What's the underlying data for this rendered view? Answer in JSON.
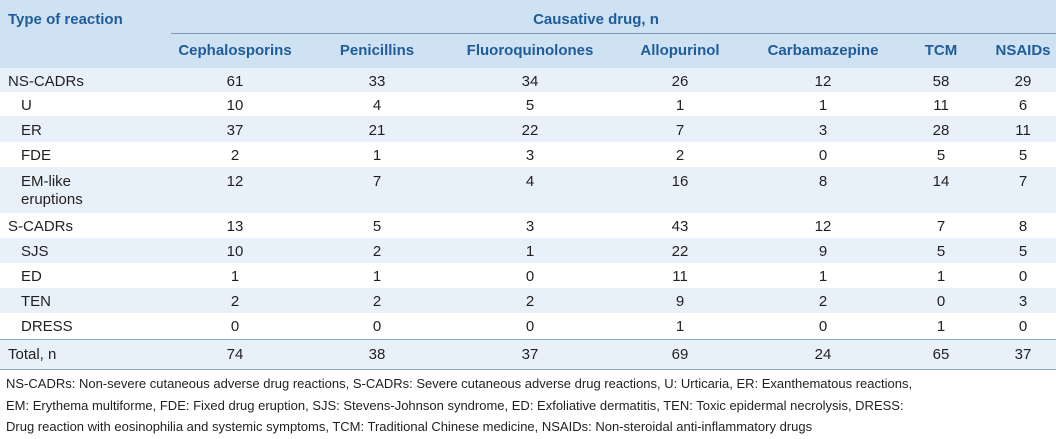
{
  "header": {
    "type_label": "Type of reaction",
    "group_label": "Causative drug, n",
    "columns": [
      "Cephalosporins",
      "Penicillins",
      "Fluoroquinolones",
      "Allopurinol",
      "Carbamazepine",
      "TCM",
      "NSAIDs"
    ]
  },
  "rows": [
    {
      "label": "NS-CADRs",
      "values": [
        "61",
        "33",
        "34",
        "26",
        "12",
        "58",
        "29"
      ]
    },
    {
      "label": "U",
      "values": [
        "10",
        "4",
        "5",
        "1",
        "1",
        "11",
        "6"
      ]
    },
    {
      "label": "ER",
      "values": [
        "37",
        "21",
        "22",
        "7",
        "3",
        "28",
        "11"
      ]
    },
    {
      "label": "FDE",
      "values": [
        "2",
        "1",
        "3",
        "2",
        "0",
        "5",
        "5"
      ]
    },
    {
      "label": "EM-like",
      "label2": "eruptions",
      "values": [
        "12",
        "7",
        "4",
        "16",
        "8",
        "14",
        "7"
      ]
    },
    {
      "label": "S-CADRs",
      "values": [
        "13",
        "5",
        "3",
        "43",
        "12",
        "7",
        "8"
      ]
    },
    {
      "label": "SJS",
      "values": [
        "10",
        "2",
        "1",
        "22",
        "9",
        "5",
        "5"
      ]
    },
    {
      "label": "ED",
      "values": [
        "1",
        "1",
        "0",
        "11",
        "1",
        "1",
        "0"
      ]
    },
    {
      "label": "TEN",
      "values": [
        "2",
        "2",
        "2",
        "9",
        "2",
        "0",
        "3"
      ]
    },
    {
      "label": "DRESS",
      "values": [
        "0",
        "0",
        "0",
        "1",
        "0",
        "1",
        "0"
      ]
    },
    {
      "label": "Total, n",
      "values": [
        "74",
        "38",
        "37",
        "69",
        "24",
        "65",
        "37"
      ]
    }
  ],
  "footnote": [
    "NS-CADRs: Non-severe cutaneous adverse drug reactions, S-CADRs: Severe cutaneous adverse drug reactions, U: Urticaria, ER: Exanthematous reactions,",
    "EM: Erythema multiforme, FDE: Fixed drug eruption, SJS: Stevens-Johnson syndrome, ED: Exfoliative dermatitis, TEN: Toxic epidermal necrolysis, DRESS:",
    "Drug reaction with eosinophilia and systemic symptoms, TCM: Traditional Chinese medicine, NSAIDs: Non-steroidal anti-inflammatory drugs"
  ]
}
